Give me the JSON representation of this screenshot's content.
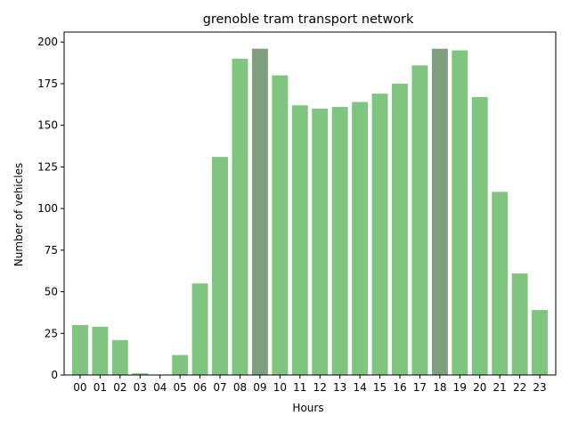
{
  "chart_data": {
    "type": "bar",
    "title": "grenoble tram transport network",
    "xlabel": "Hours",
    "ylabel": "Number of vehicles",
    "categories": [
      "00",
      "01",
      "02",
      "03",
      "04",
      "05",
      "06",
      "07",
      "08",
      "09",
      "10",
      "11",
      "12",
      "13",
      "14",
      "15",
      "16",
      "17",
      "18",
      "19",
      "20",
      "21",
      "22",
      "23"
    ],
    "values": [
      30,
      29,
      21,
      1,
      0,
      12,
      55,
      131,
      190,
      196,
      180,
      162,
      160,
      161,
      164,
      169,
      175,
      186,
      196,
      195,
      167,
      110,
      61,
      39
    ],
    "highlighted": [
      "09",
      "18"
    ],
    "ylim": [
      0,
      206
    ],
    "yticks": [
      0,
      25,
      50,
      75,
      100,
      125,
      150,
      175,
      200
    ],
    "grid": false,
    "colors": {
      "bar": "#7fc47f",
      "bar_highlight": "#7f9f7f",
      "axis": "#000000"
    }
  }
}
